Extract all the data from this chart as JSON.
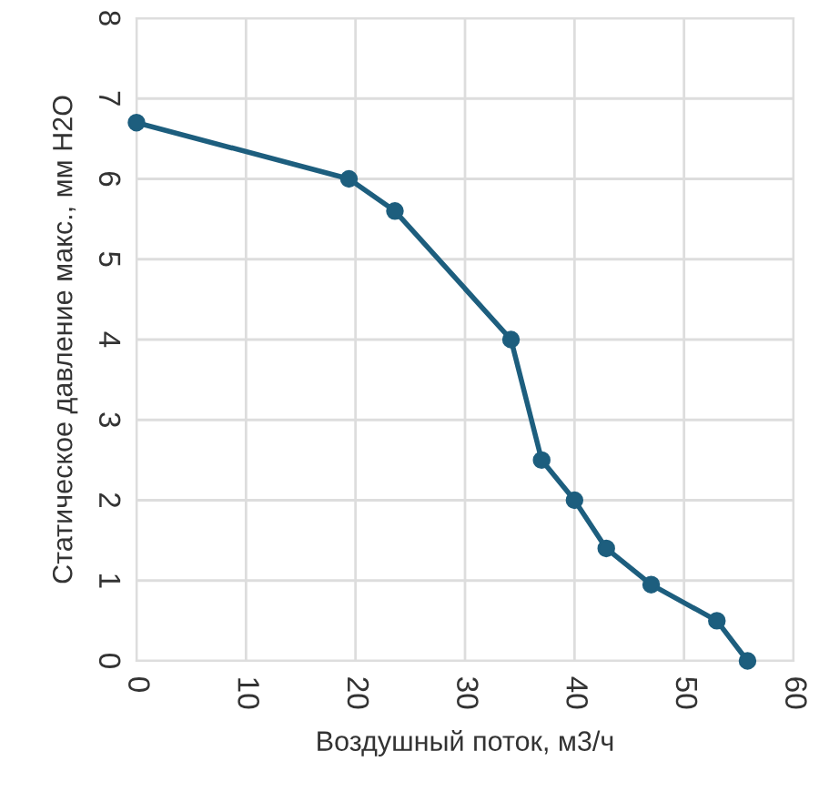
{
  "chart_data": {
    "type": "line",
    "xlabel": "Воздушный поток, м3/ч",
    "ylabel": "Статическое давление макс., мм H2O",
    "xlim": [
      0,
      60
    ],
    "xticks": [
      0,
      10,
      20,
      30,
      40,
      50,
      60
    ],
    "ylim": [
      0,
      8
    ],
    "yticks": [
      0,
      1,
      2,
      3,
      4,
      5,
      6,
      7,
      8
    ],
    "grid": true,
    "marker": "circle",
    "line_style": "solid",
    "series": [
      {
        "color": "#1d5e7e",
        "x": [
          0,
          19.4,
          23.6,
          34.2,
          37.0,
          40.0,
          42.9,
          47.0,
          53.0,
          55.8
        ],
        "values": [
          6.7,
          6.0,
          5.6,
          4.0,
          2.5,
          2.0,
          1.4,
          0.95,
          0.5,
          0
        ]
      }
    ]
  }
}
